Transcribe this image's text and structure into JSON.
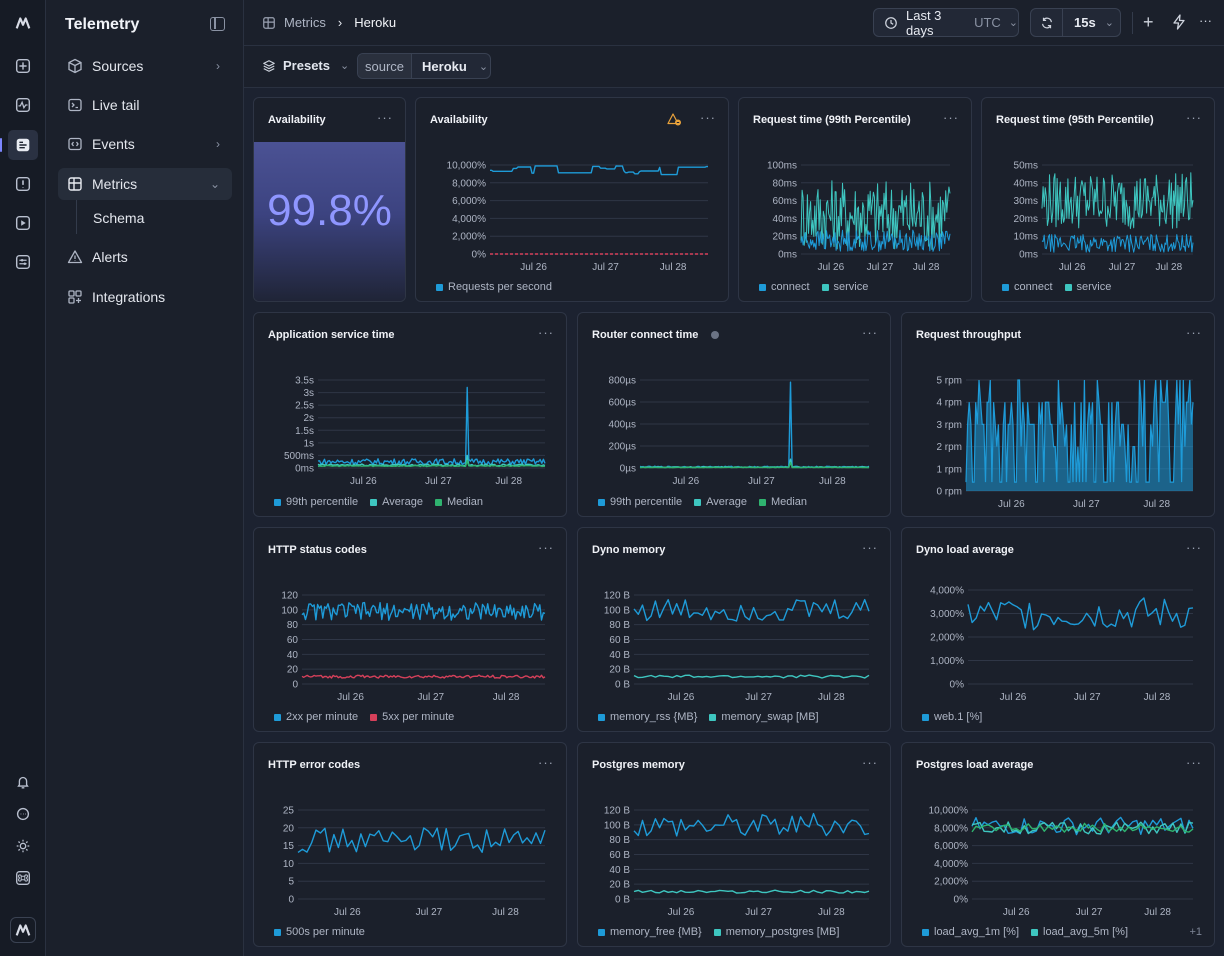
{
  "app": {
    "title": "Telemetry"
  },
  "colors": {
    "blue": "#1e9bd8",
    "teal": "#3ec6c0",
    "green": "#2fb36f",
    "red": "#d6405a",
    "accent": "#7c86ff"
  },
  "rail": {
    "icons": [
      "logo-icon",
      "new-icon",
      "activity-icon",
      "logs-icon",
      "alert-square-icon",
      "play-icon",
      "settings-sliders-icon",
      "bell-icon",
      "chat-icon",
      "sun-icon",
      "command-icon",
      "avatar-icon"
    ]
  },
  "nav": {
    "items": [
      {
        "label": "Sources",
        "icon": "cube-icon",
        "chevron": "›"
      },
      {
        "label": "Live tail",
        "icon": "terminal-icon",
        "chevron": ""
      },
      {
        "label": "Events",
        "icon": "code-icon",
        "chevron": "›"
      },
      {
        "label": "Metrics",
        "icon": "grid-icon",
        "chevron": "⌄"
      },
      {
        "label": "Alerts",
        "icon": "warning-icon",
        "chevron": ""
      },
      {
        "label": "Integrations",
        "icon": "integrations-icon",
        "chevron": ""
      }
    ],
    "sub": {
      "label": "Schema"
    }
  },
  "topbar": {
    "breadcrumb": {
      "root": "Metrics",
      "sep": "›",
      "current": "Heroku"
    },
    "time_range": {
      "label": "Last 3 days",
      "tz": "UTC"
    },
    "refresh": {
      "interval": "15s"
    }
  },
  "filters": {
    "presets": "Presets",
    "source_key": "source",
    "source_value": "Heroku"
  },
  "panels": {
    "p0": {
      "title": "Availability",
      "big_value": "99.8%"
    },
    "p1": {
      "title": "Availability",
      "legend": [
        "Requests per second"
      ]
    },
    "p2": {
      "title": "Request time (99th Percentile)",
      "legend": [
        "connect",
        "service"
      ]
    },
    "p3": {
      "title": "Request time (95th Percentile)",
      "legend": [
        "connect",
        "service"
      ]
    },
    "p4": {
      "title": "Application service time",
      "legend": [
        "99th percentile",
        "Average",
        "Median"
      ]
    },
    "p5": {
      "title": "Router connect time",
      "legend": [
        "99th percentile",
        "Average",
        "Median"
      ]
    },
    "p6": {
      "title": "Request throughput",
      "legend": []
    },
    "p7": {
      "title": "HTTP status codes",
      "legend": [
        "2xx per minute",
        "5xx per minute"
      ]
    },
    "p8": {
      "title": "Dyno memory",
      "legend": [
        "memory_rss {MB}",
        "memory_swap [MB]"
      ]
    },
    "p9": {
      "title": "Dyno load average",
      "legend": [
        "web.1 [%]"
      ]
    },
    "p10": {
      "title": "HTTP error codes",
      "legend": [
        "500s per minute"
      ]
    },
    "p11": {
      "title": "Postgres memory",
      "legend": [
        "memory_free {MB}",
        "memory_postgres [MB]"
      ]
    },
    "p12": {
      "title": "Postgres load average",
      "legend": [
        "load_avg_1m [%]",
        "load_avg_5m [%]"
      ],
      "more": "+1"
    }
  },
  "chart_data": [
    {
      "id": "p1",
      "type": "line",
      "x": [
        "Jul 26",
        "Jul 27",
        "Jul 28"
      ],
      "yticks": [
        "0%",
        "2,000%",
        "4,000%",
        "6,000%",
        "8,000%",
        "10,000%"
      ],
      "ylim": [
        0,
        10000
      ],
      "series": [
        {
          "name": "Requests per second",
          "color": "#1e9bd8",
          "level": 9400,
          "noise": 500,
          "mode": "step"
        },
        {
          "name": "",
          "color": "#d6405a",
          "level": 0,
          "noise": 0,
          "mode": "flat",
          "dashed": true
        }
      ]
    },
    {
      "id": "p2",
      "type": "line",
      "x": [
        "Jul 26",
        "Jul 27",
        "Jul 28"
      ],
      "yticks": [
        "0ms",
        "20ms",
        "40ms",
        "60ms",
        "80ms",
        "100ms"
      ],
      "ylim": [
        0,
        100
      ],
      "series": [
        {
          "name": "service",
          "color": "#3ec6c0",
          "level": 45,
          "noise": 40,
          "mode": "spiky"
        },
        {
          "name": "connect",
          "color": "#1e9bd8",
          "level": 15,
          "noise": 12,
          "mode": "spiky"
        }
      ]
    },
    {
      "id": "p3",
      "type": "line",
      "x": [
        "Jul 26",
        "Jul 27",
        "Jul 28"
      ],
      "yticks": [
        "0ms",
        "10ms",
        "20ms",
        "30ms",
        "40ms",
        "50ms"
      ],
      "ylim": [
        0,
        50
      ],
      "series": [
        {
          "name": "service",
          "color": "#3ec6c0",
          "level": 30,
          "noise": 16,
          "mode": "spiky"
        },
        {
          "name": "connect",
          "color": "#1e9bd8",
          "level": 6,
          "noise": 5,
          "mode": "spiky"
        }
      ]
    },
    {
      "id": "p4",
      "type": "line",
      "x": [
        "Jul 26",
        "Jul 27",
        "Jul 28"
      ],
      "yticks": [
        "0ms",
        "500ms",
        "1s",
        "1.5s",
        "2s",
        "2.5s",
        "3s",
        "3.5s"
      ],
      "ylim": [
        0,
        3.5
      ],
      "series": [
        {
          "name": "99th percentile",
          "color": "#1e9bd8",
          "level": 0.25,
          "noise": 0.12,
          "mode": "noise",
          "spike": 3.2
        },
        {
          "name": "Average",
          "color": "#3ec6c0",
          "level": 0.12,
          "noise": 0.04,
          "mode": "noise",
          "spike": 0.5
        },
        {
          "name": "Median",
          "color": "#2fb36f",
          "level": 0.08,
          "noise": 0.02,
          "mode": "noise",
          "spike": 0.3
        }
      ]
    },
    {
      "id": "p5",
      "type": "line",
      "x": [
        "Jul 26",
        "Jul 27",
        "Jul 28"
      ],
      "yticks": [
        "0µs",
        "200µs",
        "400µs",
        "600µs",
        "800µs"
      ],
      "ylim": [
        0,
        800
      ],
      "series": [
        {
          "name": "99th percentile",
          "color": "#1e9bd8",
          "level": 10,
          "noise": 6,
          "mode": "noise",
          "spike": 780
        },
        {
          "name": "Average",
          "color": "#3ec6c0",
          "level": 8,
          "noise": 3,
          "mode": "noise",
          "spike": 80
        },
        {
          "name": "Median",
          "color": "#2fb36f",
          "level": 5,
          "noise": 2,
          "mode": "noise",
          "spike": 50
        }
      ]
    },
    {
      "id": "p6",
      "type": "area",
      "x": [
        "Jul 26",
        "Jul 27",
        "Jul 28"
      ],
      "yticks": [
        "0 rpm",
        "1 rpm",
        "2 rpm",
        "3 rpm",
        "4 rpm",
        "5 rpm"
      ],
      "ylim": [
        0,
        5
      ],
      "series": [
        {
          "name": "",
          "color": "#1e9bd8",
          "level": 3.5,
          "noise": 1.5,
          "mode": "rpm"
        }
      ]
    },
    {
      "id": "p7",
      "type": "line",
      "x": [
        "Jul 26",
        "Jul 27",
        "Jul 28"
      ],
      "yticks": [
        "0",
        "20",
        "40",
        "60",
        "80",
        "100",
        "120"
      ],
      "ylim": [
        0,
        120
      ],
      "series": [
        {
          "name": "2xx per minute",
          "color": "#1e9bd8",
          "level": 98,
          "noise": 12,
          "mode": "noise"
        },
        {
          "name": "5xx per minute",
          "color": "#d6405a",
          "level": 10,
          "noise": 2,
          "mode": "noise"
        }
      ]
    },
    {
      "id": "p8",
      "type": "line",
      "x": [
        "Jul 26",
        "Jul 27",
        "Jul 28"
      ],
      "yticks": [
        "0 B",
        "20 B",
        "40 B",
        "60 B",
        "80 B",
        "100 B",
        "120 B"
      ],
      "ylim": [
        0,
        120
      ],
      "series": [
        {
          "name": "memory_rss {MB}",
          "color": "#1e9bd8",
          "level": 100,
          "noise": 16,
          "mode": "smooth"
        },
        {
          "name": "memory_swap [MB]",
          "color": "#3ec6c0",
          "level": 10,
          "noise": 2,
          "mode": "smooth"
        }
      ]
    },
    {
      "id": "p9",
      "type": "line",
      "x": [
        "Jul 26",
        "Jul 27",
        "Jul 28"
      ],
      "yticks": [
        "0%",
        "1,000%",
        "2,000%",
        "3,000%",
        "4,000%"
      ],
      "ylim": [
        0,
        4000
      ],
      "series": [
        {
          "name": "web.1 [%]",
          "color": "#1e9bd8",
          "level": 3000,
          "noise": 700,
          "mode": "smooth"
        }
      ]
    },
    {
      "id": "p10",
      "type": "line",
      "x": [
        "Jul 26",
        "Jul 27",
        "Jul 28"
      ],
      "yticks": [
        "0",
        "5",
        "10",
        "15",
        "20",
        "25"
      ],
      "ylim": [
        0,
        25
      ],
      "series": [
        {
          "name": "500s per minute",
          "color": "#1e9bd8",
          "level": 16.5,
          "noise": 3.5,
          "mode": "smooth"
        }
      ]
    },
    {
      "id": "p11",
      "type": "line",
      "x": [
        "Jul 26",
        "Jul 27",
        "Jul 28"
      ],
      "yticks": [
        "0 B",
        "20 B",
        "40 B",
        "60 B",
        "80 B",
        "100 B",
        "120 B"
      ],
      "ylim": [
        0,
        120
      ],
      "series": [
        {
          "name": "memory_free {MB}",
          "color": "#1e9bd8",
          "level": 100,
          "noise": 16,
          "mode": "smooth"
        },
        {
          "name": "memory_postgres [MB]",
          "color": "#3ec6c0",
          "level": 10,
          "noise": 2,
          "mode": "smooth"
        }
      ]
    },
    {
      "id": "p12",
      "type": "line",
      "x": [
        "Jul 26",
        "Jul 27",
        "Jul 28"
      ],
      "yticks": [
        "0%",
        "2,000%",
        "4,000%",
        "6,000%",
        "8,000%",
        "10,000%"
      ],
      "ylim": [
        0,
        10000
      ],
      "series": [
        {
          "name": "load_avg_1m [%]",
          "color": "#1e9bd8",
          "level": 8200,
          "noise": 1000,
          "mode": "smooth"
        },
        {
          "name": "load_avg_5m [%]",
          "color": "#3ec6c0",
          "level": 8000,
          "noise": 700,
          "mode": "smooth"
        },
        {
          "name": "",
          "color": "#2fb36f",
          "level": 8000,
          "noise": 500,
          "mode": "smooth"
        }
      ]
    }
  ]
}
